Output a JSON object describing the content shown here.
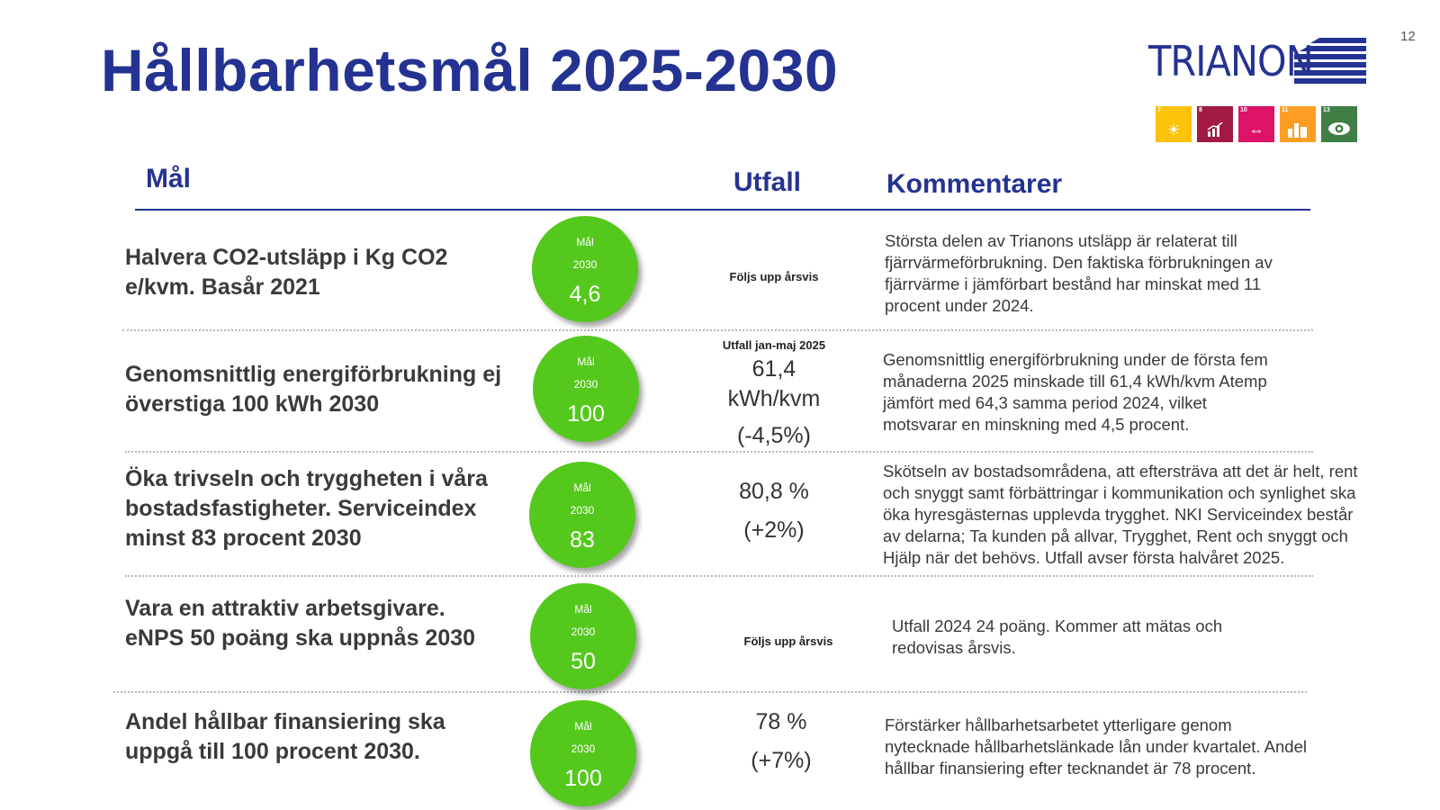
{
  "page_number": "12",
  "title": "Hållbarhetsmål 2025-2030",
  "logo": {
    "text": "TRIANON"
  },
  "sdg_icons": [
    {
      "number": "7",
      "color": "#fcc30b",
      "icon": "sun-icon"
    },
    {
      "number": "8",
      "color": "#a21942",
      "icon": "growth-chart-icon"
    },
    {
      "number": "10",
      "color": "#dd1367",
      "icon": "equality-arrows-icon"
    },
    {
      "number": "11",
      "color": "#fd9d24",
      "icon": "city-icon"
    },
    {
      "number": "13",
      "color": "#3f7e44",
      "icon": "eye-globe-icon"
    }
  ],
  "headers": {
    "goal": "Mål",
    "outcome": "Utfall",
    "comments": "Kommentarer"
  },
  "colors": {
    "brand": "#243391",
    "circle": "#55c81e"
  },
  "rows": [
    {
      "goal": [
        "Halvera CO2-utsläpp i Kg CO2",
        "e/kvm. Basår 2021"
      ],
      "circle": {
        "label1": "Mål",
        "label2": "2030",
        "value": "4,6"
      },
      "outcome_small": "Följs upp årsvis",
      "comment": [
        "Största delen av Trianons utsläpp är relaterat till",
        "fjärrvärmeförbrukning. Den faktiska förbrukningen av",
        "fjärrvärme i jämförbart bestånd har minskat med 11",
        "procent under 2024."
      ]
    },
    {
      "goal": [
        "Genomsnittlig energiförbrukning ej",
        "överstiga 100 kWh 2030"
      ],
      "circle": {
        "label1": "Mål",
        "label2": "2030",
        "value": "100"
      },
      "outcome_small": "Utfall jan-maj 2025",
      "outcome_big": [
        "61,4",
        "kWh/kvm"
      ],
      "outcome_sub": "(-4,5%)",
      "comment": [
        "Genomsnittlig energiförbrukning under de första fem",
        "månaderna 2025 minskade till 61,4 kWh/kvm Atemp",
        "jämfört med 64,3 samma period 2024, vilket",
        "motsvarar en minskning med 4,5 procent."
      ]
    },
    {
      "goal": [
        "Öka trivseln och tryggheten i våra",
        "bostadsfastigheter. Serviceindex",
        "minst 83 procent 2030"
      ],
      "circle": {
        "label1": "Mål",
        "label2": "2030",
        "value": "83"
      },
      "outcome_big": [
        "80,8 %"
      ],
      "outcome_sub": "(+2%)",
      "comment": [
        "Skötseln av bostadsområdena, att eftersträva att det är helt, rent",
        "och snyggt samt förbättringar i kommunikation och synlighet ska",
        "öka hyresgästernas upplevda trygghet. NKI Serviceindex består",
        "av delarna; Ta kunden på allvar, Trygghet, Rent och snyggt och",
        "Hjälp när det behövs. Utfall avser första halvåret 2025."
      ]
    },
    {
      "goal": [
        "Vara en attraktiv arbetsgivare.",
        "eNPS 50 poäng ska uppnås 2030"
      ],
      "circle": {
        "label1": "Mål",
        "label2": "2030",
        "value": "50"
      },
      "outcome_small": "Följs upp årsvis",
      "comment": [
        "Utfall 2024 24 poäng. Kommer att mätas och",
        "redovisas årsvis."
      ]
    },
    {
      "goal": [
        "Andel hållbar finansiering ska",
        "uppgå till 100 procent 2030."
      ],
      "circle": {
        "label1": "Mål",
        "label2": "2030",
        "value": "100"
      },
      "outcome_big": [
        "78 %"
      ],
      "outcome_sub": "(+7%)",
      "comment": [
        "Förstärker hållbarhetsarbetet ytterligare genom",
        "nytecknade hållbarhetslänkade lån under kvartalet. Andel",
        "hållbar finansiering efter tecknandet är 78 procent."
      ]
    }
  ]
}
